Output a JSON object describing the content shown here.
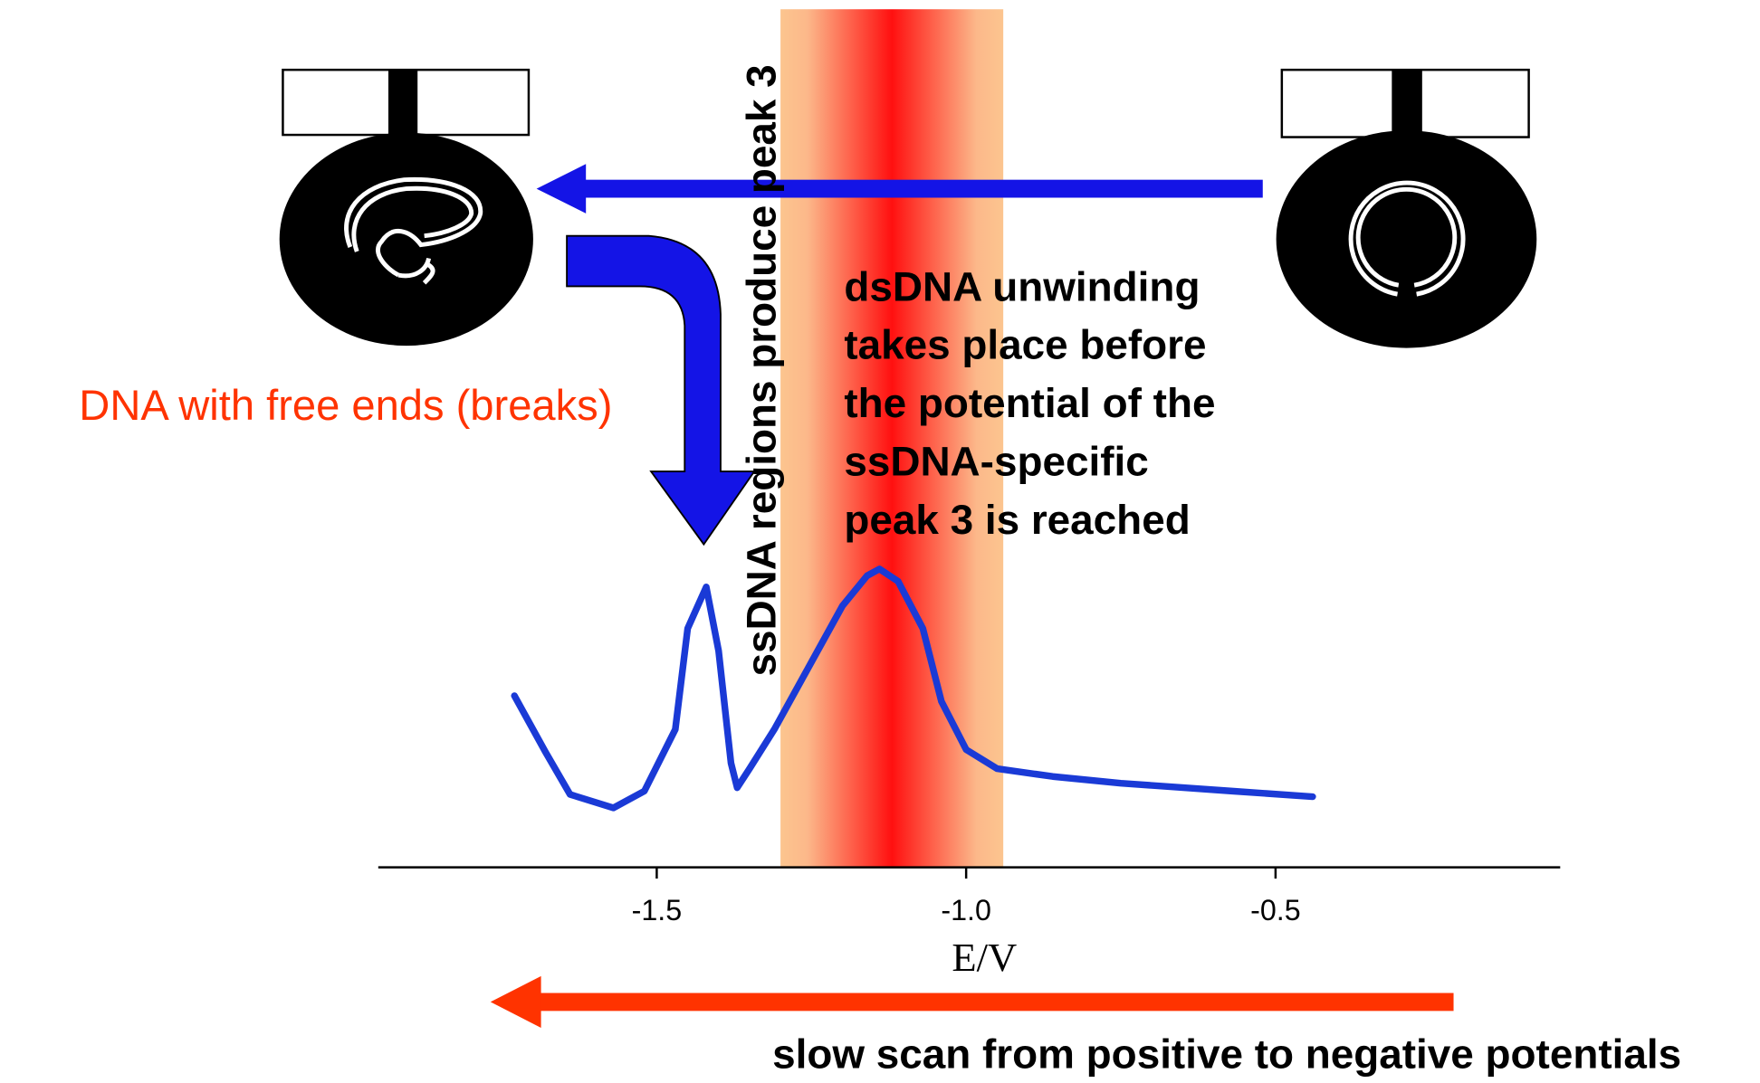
{
  "chart_data": {
    "type": "line",
    "x_label": "E/V",
    "xlim": [
      -1.95,
      -0.04
    ],
    "xticks": [
      -1.5,
      {
        "value": -1.0,
        "label": "-1.0"
      },
      -0.5
    ],
    "ylim": [
      0,
      100
    ],
    "series": [
      {
        "color": "#1a3ad6",
        "x": [
          -1.73,
          -1.68,
          -1.64,
          -1.57,
          -1.52,
          -1.47,
          -1.45,
          -1.42,
          -1.4,
          -1.38,
          -1.37,
          -1.35,
          -1.31,
          -1.26,
          -1.2,
          -1.16,
          -1.14,
          -1.11,
          -1.07,
          -1.04,
          -1.0,
          -0.95,
          -0.86,
          -0.75,
          -0.57,
          -0.44
        ],
        "values": [
          30.6,
          20.6,
          13,
          10.6,
          13.6,
          24.6,
          42.6,
          50,
          38.6,
          18.6,
          14.2,
          17.6,
          24.6,
          34.6,
          46.6,
          52,
          53.2,
          51,
          42.6,
          29.6,
          21,
          17.6,
          16.2,
          15,
          13.6,
          12.6
        ]
      }
    ],
    "highlight_range": [
      -1.3,
      -0.94
    ],
    "annotations": {
      "vertical": "ssDNA regions produce peak 3",
      "unwinding": [
        "dsDNA unwinding",
        "takes place before",
        "the potential of the",
        "ssDNA-specific",
        "peak 3 is reached"
      ],
      "free_ends": "DNA with free ends (breaks)",
      "scan": "slow scan from positive to negative potentials"
    }
  }
}
